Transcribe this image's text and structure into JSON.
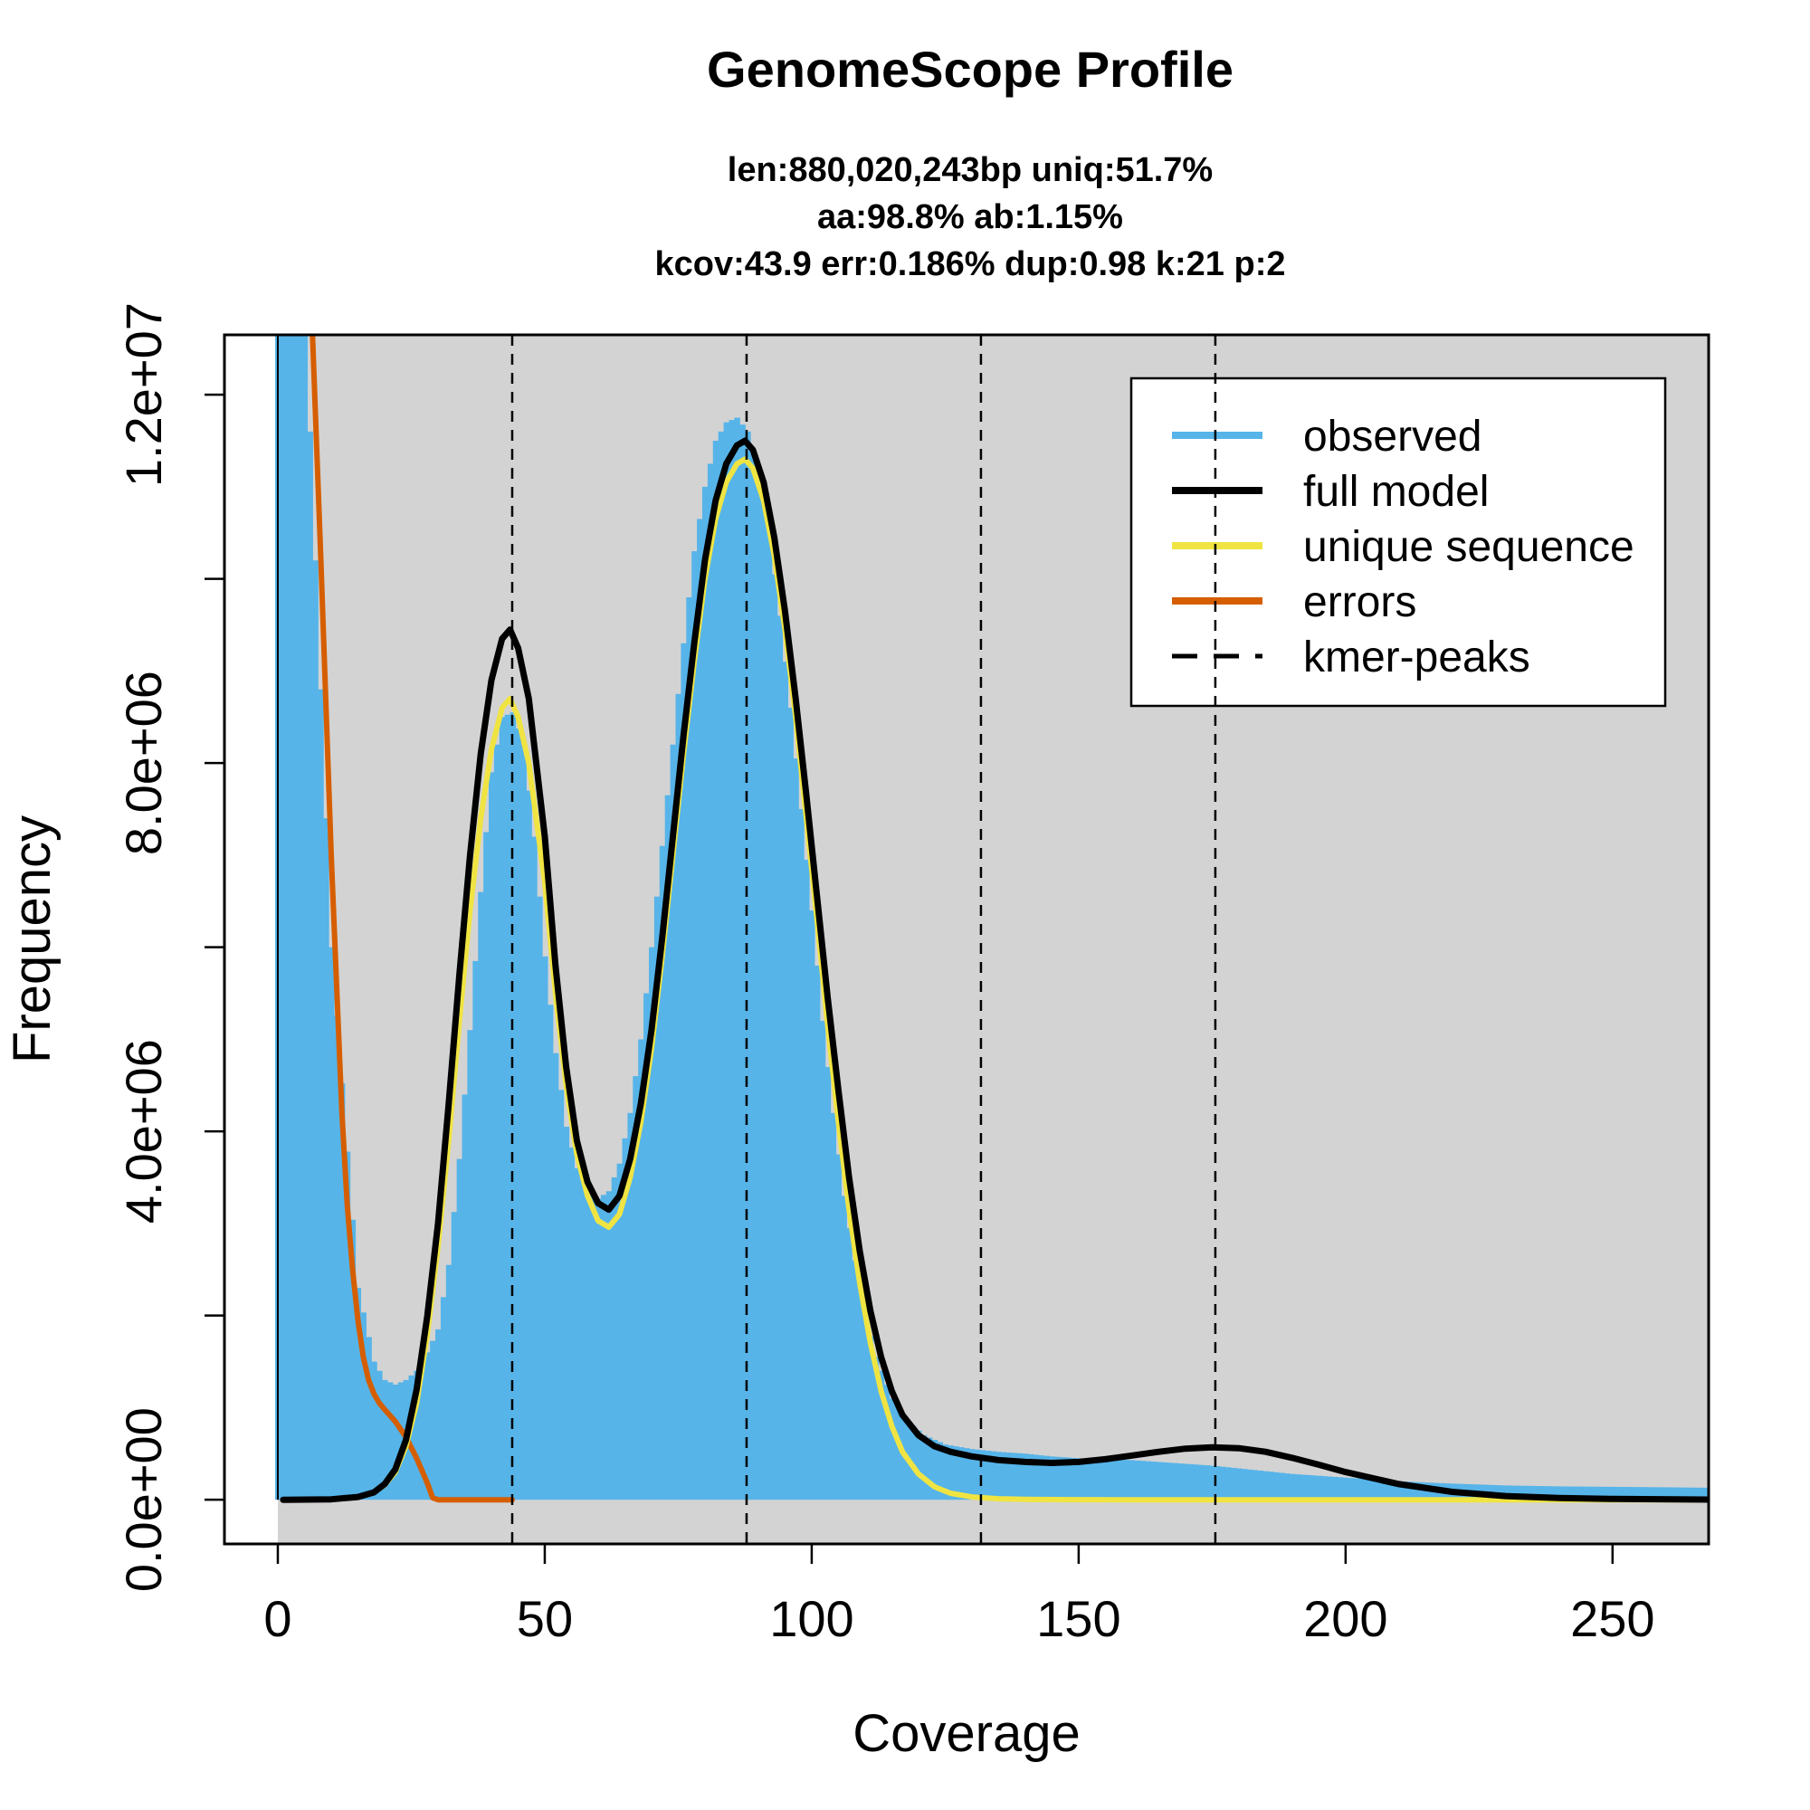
{
  "chart_data": {
    "type": "line",
    "title": "GenomeScope Profile",
    "subtitle": [
      "len:880,020,243bp uniq:51.7%",
      "aa:98.8% ab:1.15%",
      "kcov:43.9 err:0.186%  dup:0.98  k:21 p:2"
    ],
    "xlabel": "Coverage",
    "ylabel": "Frequency",
    "xlim": [
      -10,
      268
    ],
    "ylim": [
      -480000,
      12650000
    ],
    "x_ticks": [
      0,
      50,
      100,
      150,
      200,
      250
    ],
    "x_tick_labels": [
      "0",
      "50",
      "100",
      "150",
      "200",
      "250"
    ],
    "y_ticks": [
      0,
      2000000,
      4000000,
      6000000,
      8000000,
      10000000,
      12000000
    ],
    "y_tick_labels": [
      "0.0e+00",
      "",
      "4.0e+06",
      "",
      "8.0e+06",
      "",
      "1.2e+07"
    ],
    "kmer_peaks": [
      43.9,
      87.8,
      131.7,
      175.6
    ],
    "background_color": "#d3d3d3",
    "legend": {
      "position": "top-right",
      "entries": [
        {
          "label": "observed",
          "color": "#56B4E9",
          "style": "solid"
        },
        {
          "label": "full model",
          "color": "#000000",
          "style": "solid"
        },
        {
          "label": "unique sequence",
          "color": "#F0E442",
          "style": "solid"
        },
        {
          "label": "errors",
          "color": "#D55E00",
          "style": "solid"
        },
        {
          "label": "kmer-peaks",
          "color": "#000000",
          "style": "dashed"
        }
      ]
    },
    "series": [
      {
        "name": "observed",
        "kind": "histogram",
        "color": "#56B4E9",
        "x": [
          0,
          5,
          10,
          15,
          18,
          20,
          22,
          24,
          26,
          28,
          30,
          32,
          34,
          36,
          38,
          40,
          42,
          44,
          46,
          48,
          50,
          52,
          54,
          56,
          58,
          60,
          62,
          64,
          66,
          68,
          70,
          72,
          74,
          76,
          78,
          80,
          82,
          84,
          86,
          88,
          90,
          92,
          94,
          96,
          98,
          100,
          102,
          104,
          106,
          108,
          110,
          112,
          115,
          118,
          121,
          125,
          130,
          135,
          140,
          145,
          150,
          155,
          160,
          165,
          170,
          175,
          180,
          185,
          190,
          195,
          200,
          210,
          220,
          230,
          240,
          250,
          260,
          268
        ],
        "y": [
          13000000,
          13000000,
          6000000,
          2300000,
          1500000,
          1300000,
          1250000,
          1300000,
          1400000,
          1600000,
          1850000,
          2550000,
          3700000,
          5100000,
          6600000,
          7900000,
          8500000,
          8550000,
          8200000,
          7200000,
          5900000,
          4850000,
          4050000,
          3600000,
          3350000,
          3270000,
          3350000,
          3650000,
          4200000,
          5000000,
          6000000,
          7100000,
          8200000,
          9300000,
          10300000,
          11000000,
          11500000,
          11700000,
          11750000,
          11600000,
          11200000,
          10500000,
          9600000,
          8600000,
          7500000,
          6400000,
          5200000,
          4200000,
          3300000,
          2600000,
          2000000,
          1550000,
          1100000,
          850000,
          700000,
          600000,
          550000,
          520000,
          500000,
          470000,
          450000,
          440000,
          430000,
          410000,
          390000,
          370000,
          340000,
          310000,
          280000,
          260000,
          240000,
          200000,
          175000,
          155000,
          145000,
          140000,
          135000,
          130000
        ]
      },
      {
        "name": "full model",
        "color": "#000000",
        "x": [
          1,
          10,
          15,
          18,
          20,
          22,
          24,
          26,
          28,
          30,
          32,
          34,
          36,
          38,
          40,
          42,
          43.5,
          45,
          47,
          50,
          52,
          54,
          56,
          58,
          60,
          62,
          64,
          66,
          68,
          70,
          72,
          74,
          76,
          78,
          80,
          82,
          84,
          86,
          87.5,
          89,
          91,
          93,
          95,
          97,
          99,
          101,
          103,
          105,
          107,
          109,
          111,
          113,
          115,
          117,
          120,
          123,
          126,
          130,
          135,
          140,
          145,
          150,
          155,
          160,
          165,
          170,
          175,
          180,
          185,
          190,
          195,
          200,
          210,
          220,
          230,
          240,
          250,
          268
        ],
        "y": [
          0,
          5000,
          30000,
          80000,
          170000,
          330000,
          650000,
          1200000,
          2000000,
          3000000,
          4300000,
          5700000,
          7000000,
          8100000,
          8900000,
          9350000,
          9450000,
          9250000,
          8700000,
          7200000,
          5800000,
          4700000,
          3900000,
          3450000,
          3220000,
          3150000,
          3300000,
          3700000,
          4300000,
          5100000,
          6100000,
          7200000,
          8300000,
          9300000,
          10200000,
          10850000,
          11250000,
          11450000,
          11500000,
          11400000,
          11050000,
          10450000,
          9650000,
          8700000,
          7650000,
          6550000,
          5450000,
          4450000,
          3500000,
          2700000,
          2050000,
          1550000,
          1180000,
          920000,
          700000,
          580000,
          520000,
          470000,
          430000,
          410000,
          400000,
          410000,
          440000,
          480000,
          520000,
          555000,
          570000,
          560000,
          520000,
          455000,
          380000,
          300000,
          170000,
          85000,
          40000,
          18000,
          8000,
          2000
        ]
      },
      {
        "name": "unique sequence",
        "color": "#F0E442",
        "x": [
          1,
          10,
          15,
          18,
          20,
          22,
          24,
          26,
          28,
          30,
          32,
          34,
          36,
          38,
          40,
          42,
          43.5,
          45,
          47,
          50,
          52,
          54,
          56,
          58,
          60,
          62,
          64,
          66,
          68,
          70,
          72,
          74,
          76,
          78,
          80,
          82,
          84,
          86,
          87.5,
          89,
          91,
          93,
          95,
          97,
          99,
          101,
          103,
          105,
          107,
          109,
          111,
          113,
          115,
          117,
          120,
          123,
          126,
          130,
          135,
          140,
          150,
          160,
          200,
          268
        ],
        "y": [
          0,
          5000,
          30000,
          80000,
          160000,
          300000,
          580000,
          1050000,
          1800000,
          2750000,
          3900000,
          5200000,
          6400000,
          7400000,
          8150000,
          8600000,
          8700000,
          8500000,
          8000000,
          6700000,
          5500000,
          4500000,
          3750000,
          3300000,
          3030000,
          2960000,
          3100000,
          3500000,
          4100000,
          4900000,
          5900000,
          7000000,
          8100000,
          9100000,
          10000000,
          10650000,
          11050000,
          11250000,
          11300000,
          11200000,
          10850000,
          10250000,
          9450000,
          8500000,
          7400000,
          6300000,
          5150000,
          4100000,
          3150000,
          2350000,
          1700000,
          1180000,
          800000,
          520000,
          280000,
          140000,
          70000,
          30000,
          10000,
          4000,
          1000,
          0,
          0,
          0
        ]
      },
      {
        "name": "errors",
        "color": "#D55E00",
        "x": [
          6.5,
          8,
          10,
          12,
          13,
          14,
          15,
          16,
          17,
          18,
          19,
          20,
          22,
          24,
          26,
          28,
          29,
          30,
          32,
          35,
          40,
          43.9
        ],
        "y": [
          12650000,
          10300000,
          7000000,
          4200000,
          3200000,
          2500000,
          1950000,
          1550000,
          1300000,
          1150000,
          1050000,
          980000,
          850000,
          680000,
          450000,
          180000,
          20000,
          0,
          0,
          0,
          0,
          0
        ]
      }
    ]
  }
}
